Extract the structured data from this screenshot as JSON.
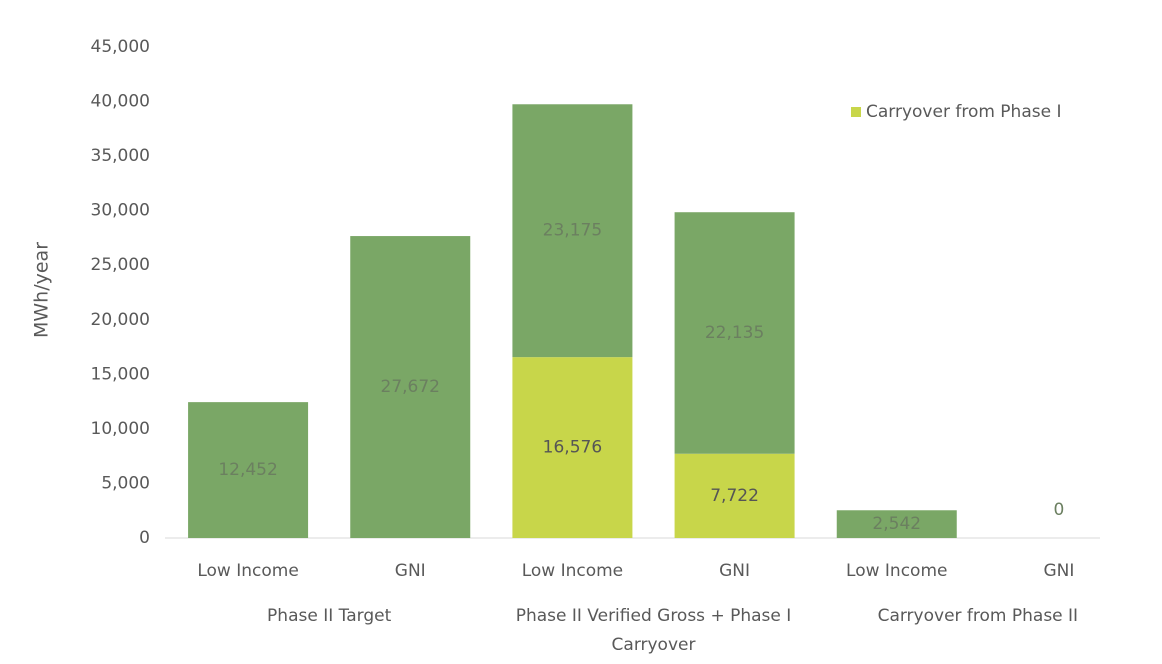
{
  "chart_data": {
    "type": "stacked_bar",
    "y_label": "MWh/year",
    "categories": [
      "Low Income",
      "GNI",
      "Low Income",
      "GNI",
      "Low Income",
      "GNI"
    ],
    "groups": [
      {
        "name": "Phase II Target",
        "span": [
          0,
          1
        ]
      },
      {
        "name": "Phase II Verified Gross + Phase I Carryover",
        "span": [
          2,
          3
        ]
      },
      {
        "name": "Carryover from Phase II",
        "span": [
          4,
          5
        ]
      }
    ],
    "series": [
      {
        "name": "Carryover from Phase I",
        "color": "#c8d64a",
        "values": [
          null,
          null,
          16576,
          7722,
          null,
          null
        ],
        "value_labels": [
          null,
          null,
          "16,576",
          "7,722",
          null,
          null
        ]
      },
      {
        "color": "#7aa766",
        "values": [
          12452,
          27672,
          23175,
          22135,
          2542,
          0
        ],
        "value_labels": [
          "12,452",
          "27,672",
          "23,175",
          "22,135",
          "2,542",
          "0"
        ]
      }
    ],
    "ylim": [
      0,
      45000
    ],
    "yticks": [
      0,
      {
        "value": 5000,
        "label": "5,000"
      },
      {
        "value": 10000,
        "label": "10,000"
      },
      {
        "value": 15000,
        "label": "15,000"
      },
      {
        "value": 20000,
        "label": "20,000"
      },
      {
        "value": 25000,
        "label": "25,000"
      },
      {
        "value": 30000,
        "label": "30,000"
      },
      {
        "value": 35000,
        "label": "35,000"
      },
      {
        "value": 40000,
        "label": "40,000"
      },
      {
        "value": 45000,
        "label": "45,000"
      }
    ],
    "grid": false,
    "legend": "top-right"
  }
}
